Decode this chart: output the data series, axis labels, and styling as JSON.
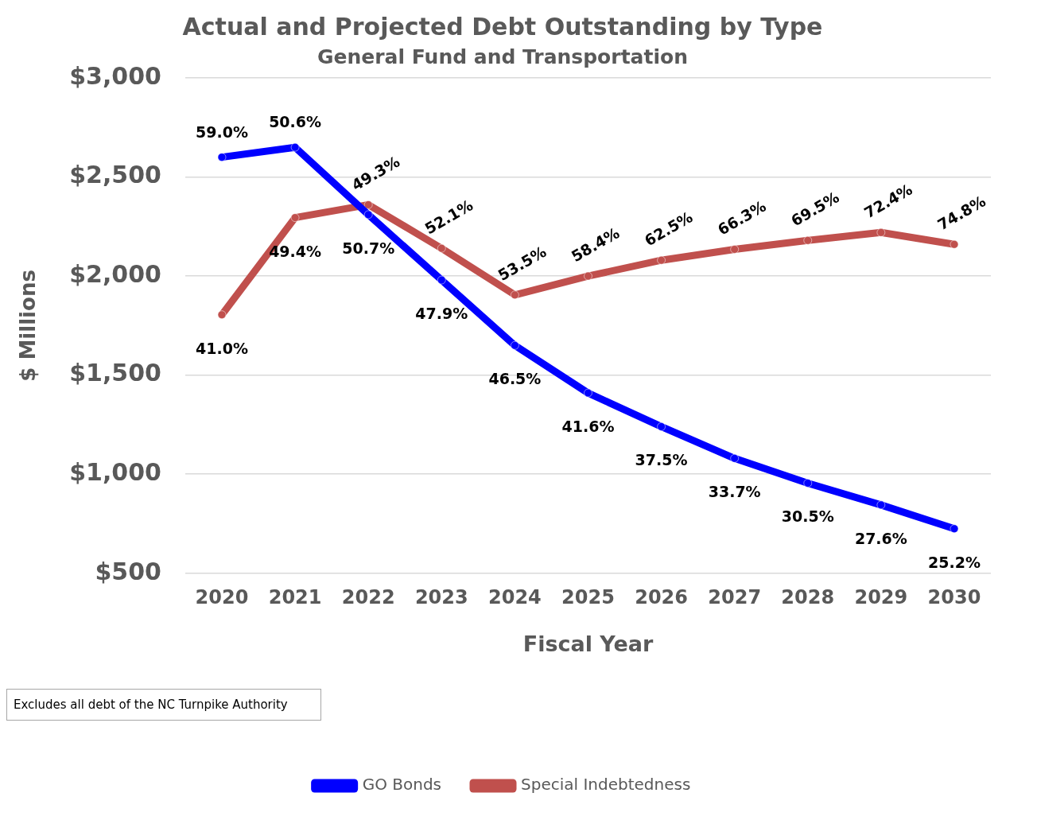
{
  "chart_data": {
    "type": "line",
    "title": "Actual and Projected Debt Outstanding by Type",
    "subtitle": "General Fund and Transportation",
    "xlabel": "Fiscal Year",
    "ylabel": "$ Millions",
    "categories": [
      "2020",
      "2021",
      "2022",
      "2023",
      "2024",
      "2025",
      "2026",
      "2027",
      "2028",
      "2029",
      "2030"
    ],
    "series": [
      {
        "name": "GO Bonds",
        "color": "#0000ff",
        "values": [
          2600,
          2650,
          2310,
          1980,
          1650,
          1410,
          1240,
          1080,
          955,
          845,
          725
        ]
      },
      {
        "name": "Special Indebtedness",
        "color": "#c0504d",
        "values": [
          1805,
          2295,
          2360,
          2140,
          1905,
          2000,
          2080,
          2135,
          2180,
          2220,
          2160
        ]
      }
    ],
    "ylim": [
      500,
      3000
    ],
    "yticks": [
      {
        "value": 500,
        "label": "$500"
      },
      {
        "value": 1000,
        "label": "$1,000"
      },
      {
        "value": 1500,
        "label": "$1,500"
      },
      {
        "value": 2000,
        "label": "$2,000"
      },
      {
        "value": 2500,
        "label": "$2,500"
      },
      {
        "value": 3000,
        "label": "$3,000"
      }
    ],
    "grid": "y",
    "legend": "bottom",
    "marker": "circle",
    "line_style": "solid",
    "annotations": [
      "Excludes all debt of the NC Turnpike Authority",
      {
        "text": "59.0%",
        "x": "2020",
        "y": 2600
      },
      {
        "text": "50.6%",
        "x": "2021",
        "y": 2650
      },
      {
        "text": "50.7%",
        "x": "2022",
        "y": 2310
      },
      {
        "text": "47.9%",
        "x": "2023",
        "y": 1980
      },
      {
        "text": "46.5%",
        "x": "2024",
        "y": 1650
      },
      {
        "text": "41.6%",
        "x": "2025",
        "y": 1410
      },
      {
        "text": "37.5%",
        "x": "2026",
        "y": 1240
      },
      {
        "text": "33.7%",
        "x": "2027",
        "y": 1080
      },
      {
        "text": "30.5%",
        "x": "2028",
        "y": 955
      },
      {
        "text": "27.6%",
        "x": "2029",
        "y": 845
      },
      {
        "text": "25.2%",
        "x": "2030",
        "y": 725
      },
      {
        "text": "41.0%",
        "x": "2020",
        "y": 1805
      },
      {
        "text": "49.4%",
        "x": "2021",
        "y": 2295
      },
      {
        "text": "49.3%",
        "x": "2022",
        "y": 2360
      },
      {
        "text": "52.1%",
        "x": "2023",
        "y": 2140
      },
      {
        "text": "53.5%",
        "x": "2024",
        "y": 1905
      },
      {
        "text": "58.4%",
        "x": "2025",
        "y": 2000
      },
      {
        "text": "62.5%",
        "x": "2026",
        "y": 2080
      },
      {
        "text": "66.3%",
        "x": "2027",
        "y": 2135
      },
      {
        "text": "69.5%",
        "x": "2028",
        "y": 2180
      },
      {
        "text": "72.4%",
        "x": "2029",
        "y": 2220
      },
      {
        "text": "74.8%",
        "x": "2030",
        "y": 2160
      }
    ]
  }
}
